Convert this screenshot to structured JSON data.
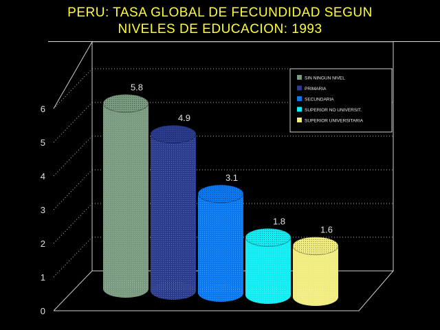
{
  "chart_data": {
    "type": "bar",
    "title_line1": "PERU: TASA GLOBAL DE FECUNDIDAD SEGUN",
    "title_line2": "NIVELES DE EDUCACION: 1993",
    "categories": [
      "SIN NINGUN NIVEL",
      "PRIMARIA",
      "SECUNDARIA",
      "SUPERIOR NO UNIVERSIT.",
      "SUPERIOR UNIVERSITARIA"
    ],
    "values": [
      5.8,
      4.9,
      3.1,
      1.8,
      1.6
    ],
    "value_labels": [
      "5.8",
      "4.9",
      "3.1",
      "1.8",
      "1.6"
    ],
    "colors": [
      "#7a9a80",
      "#2b3c8e",
      "#0a78f0",
      "#10ecf2",
      "#f0ec80"
    ],
    "yticks": [
      "0",
      "1",
      "2",
      "3",
      "4",
      "5",
      "6"
    ],
    "ylim": [
      0,
      6
    ],
    "legend_position": "top-right",
    "grid": true
  }
}
